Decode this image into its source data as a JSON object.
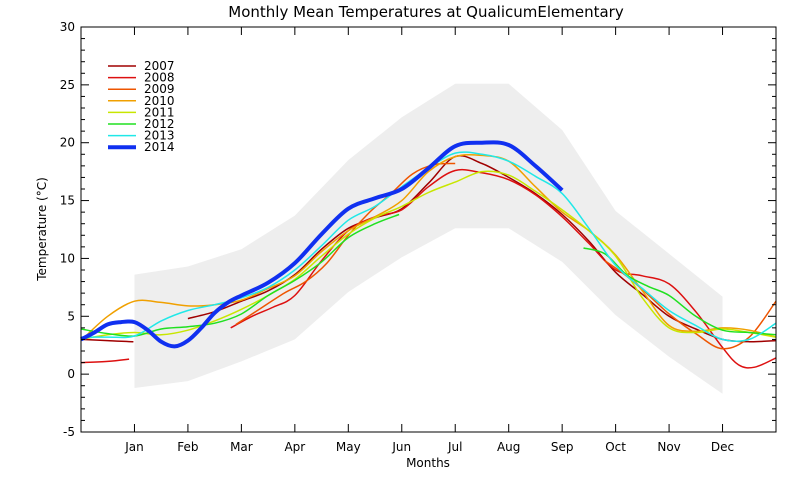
{
  "chart_data": {
    "type": "line",
    "title": "Monthly Mean Temperatures at QualicumElementary",
    "xlabel": "Months",
    "ylabel": "Temperature (°C)",
    "xlim": [
      0,
      13
    ],
    "ylim": [
      -5,
      30
    ],
    "yticks": [
      -5,
      0,
      5,
      10,
      15,
      20,
      25,
      30
    ],
    "x_tick_labels": [
      "Jan",
      "Feb",
      "Mar",
      "Apr",
      "May",
      "Jun",
      "Jul",
      "Aug",
      "Sep",
      "Oct",
      "Nov",
      "Dec"
    ],
    "x_tick_positions": [
      1,
      2,
      3,
      4,
      5,
      6,
      7,
      8,
      9,
      10,
      11,
      12
    ],
    "legend_position": "top-left",
    "range_band": {
      "color": "#eeeeee",
      "x": [
        1,
        2,
        3,
        4,
        5,
        6,
        7,
        8,
        9,
        10,
        11,
        12
      ],
      "upper": [
        8.6,
        9.3,
        10.8,
        13.7,
        18.5,
        22.2,
        25.1,
        25.1,
        21.1,
        14.1,
        10.4,
        6.7
      ],
      "lower": [
        -1.2,
        -0.6,
        1.1,
        3.0,
        7.1,
        10.1,
        12.6,
        12.6,
        9.7,
        5.1,
        1.5,
        -1.7
      ]
    },
    "series": [
      {
        "name": "2007",
        "color": "#a00000",
        "width": 1.5,
        "segments": [
          {
            "x": [
              0,
              0.5,
              0.98
            ],
            "y": [
              3.0,
              2.9,
              2.8
            ]
          },
          {
            "x": [
              2.0,
              2.5,
              3.0,
              3.5,
              4.0,
              4.5,
              5.0,
              5.5,
              6.0,
              6.5,
              7.0,
              7.5,
              8.0,
              8.5,
              9.0,
              9.5,
              10.0,
              10.5,
              11.0,
              11.5,
              12.0,
              12.5,
              13.0
            ],
            "y": [
              4.8,
              5.4,
              6.3,
              7.2,
              8.6,
              10.8,
              12.6,
              13.5,
              14.3,
              16.5,
              18.8,
              18.2,
              17.0,
              15.6,
              13.8,
              11.5,
              8.8,
              6.9,
              5.0,
              3.9,
              3.0,
              2.8,
              2.9
            ]
          }
        ]
      },
      {
        "name": "2008",
        "color": "#dd1010",
        "width": 1.5,
        "segments": [
          {
            "x": [
              0,
              0.5,
              0.9
            ],
            "y": [
              1.0,
              1.1,
              1.3
            ]
          },
          {
            "x": [
              2.8,
              3.2,
              3.6,
              4.0,
              4.5,
              5.0,
              5.5,
              6.0,
              6.5,
              7.0,
              7.5,
              8.0,
              8.5,
              9.0,
              9.5,
              10.0,
              10.5,
              11.0,
              11.5,
              12.0,
              12.3,
              12.6,
              13.0
            ],
            "y": [
              4.0,
              5.0,
              5.8,
              6.8,
              9.8,
              12.4,
              13.6,
              14.2,
              16.2,
              17.6,
              17.4,
              16.8,
              15.5,
              13.6,
              11.3,
              9.0,
              8.5,
              7.8,
              5.4,
              2.3,
              0.8,
              0.6,
              1.4
            ]
          }
        ]
      },
      {
        "name": "2009",
        "color": "#ee5500",
        "width": 1.5,
        "segments": [
          {
            "x": [
              2.9,
              3.3,
              3.8,
              4.2,
              4.6,
              5.0,
              5.4,
              5.8,
              6.2,
              6.6,
              7.0
            ],
            "y": [
              4.3,
              5.5,
              7.0,
              8.0,
              9.6,
              12.0,
              14.0,
              15.6,
              17.3,
              18.1,
              18.2
            ]
          },
          {
            "x": [
              9.8,
              10.2,
              10.6,
              11.0,
              11.5,
              12.0,
              12.5,
              13.0
            ],
            "y": [
              9.8,
              8.5,
              6.9,
              5.2,
              3.5,
              2.2,
              3.2,
              6.3
            ]
          }
        ]
      },
      {
        "name": "2010",
        "color": "#f0a000",
        "width": 1.5,
        "segments": [
          {
            "x": [
              0,
              0.5,
              1.0,
              1.5,
              2.0,
              2.5,
              3.0,
              3.5,
              4.0,
              4.5,
              5.0,
              5.5,
              6.0,
              6.5,
              7.0,
              7.5,
              8.0,
              8.5,
              9.0,
              9.5,
              10.0,
              10.5,
              11.0,
              11.5,
              12.0,
              12.5,
              13.0
            ],
            "y": [
              2.9,
              5.0,
              6.3,
              6.2,
              5.9,
              6.0,
              6.4,
              7.4,
              8.5,
              10.6,
              12.4,
              13.6,
              15.0,
              17.5,
              18.8,
              18.9,
              18.4,
              16.2,
              14.0,
              12.4,
              10.3,
              7.2,
              4.2,
              3.7,
              4.0,
              3.8,
              3.2
            ]
          }
        ]
      },
      {
        "name": "2011",
        "color": "#c8e600",
        "width": 1.5,
        "segments": [
          {
            "x": [
              0,
              0.5,
              1.0,
              1.5,
              2.0,
              2.5,
              3.0,
              3.5,
              4.0,
              4.5,
              5.0,
              5.5,
              6.0,
              6.5,
              7.0,
              7.5,
              8.0,
              8.5,
              9.0,
              9.5,
              10.0,
              10.5,
              11.0,
              11.5,
              12.0,
              12.5,
              13.0
            ],
            "y": [
              3.0,
              3.4,
              3.6,
              3.4,
              3.8,
              4.6,
              5.6,
              6.8,
              8.2,
              10.2,
              12.1,
              13.5,
              14.5,
              15.7,
              16.6,
              17.5,
              17.2,
              15.8,
              14.2,
              12.4,
              10.2,
              6.6,
              4.0,
              3.6,
              3.9,
              3.6,
              3.2
            ]
          }
        ]
      },
      {
        "name": "2012",
        "color": "#20e020",
        "width": 1.5,
        "segments": [
          {
            "x": [
              0,
              0.5,
              1.0,
              1.5,
              2.0,
              2.5,
              3.0,
              3.5,
              4.0,
              4.5,
              5.0,
              5.5,
              5.95
            ],
            "y": [
              3.9,
              3.5,
              3.3,
              3.9,
              4.1,
              4.4,
              5.2,
              6.8,
              8.1,
              9.7,
              11.8,
              13.0,
              13.8
            ]
          },
          {
            "x": [
              9.4,
              9.8,
              10.2,
              10.6,
              11.0,
              11.5,
              12.0,
              12.5,
              13.0
            ],
            "y": [
              10.9,
              10.4,
              8.6,
              7.6,
              6.8,
              5.0,
              3.8,
              3.6,
              3.4
            ]
          }
        ]
      },
      {
        "name": "2013",
        "color": "#20e8e8",
        "width": 1.5,
        "segments": [
          {
            "x": [
              0,
              0.5,
              1.0,
              1.5,
              2.0,
              2.5,
              3.0,
              3.5,
              4.0,
              4.5,
              5.0,
              5.5,
              6.0,
              6.5,
              7.0,
              7.5,
              8.0,
              8.5,
              9.0,
              9.5,
              10.0,
              10.5,
              11.0,
              11.5,
              12.0,
              12.5,
              13.0
            ],
            "y": [
              3.2,
              3.2,
              3.3,
              4.6,
              5.5,
              6.0,
              6.6,
              7.5,
              9.0,
              11.1,
              13.3,
              14.5,
              16.2,
              17.8,
              19.1,
              19.0,
              18.4,
              17.1,
              15.6,
              12.6,
              9.4,
              7.4,
              5.5,
              4.2,
              3.0,
              3.0,
              4.4
            ]
          }
        ]
      },
      {
        "name": "2014",
        "color": "#1030f0",
        "width": 4,
        "segments": [
          {
            "x": [
              0,
              0.25,
              0.5,
              0.75,
              1.0,
              1.25,
              1.5,
              1.75,
              2.0,
              2.25,
              2.5,
              2.75,
              3.0,
              3.5,
              4.0,
              4.5,
              5.0,
              5.5,
              6.0,
              6.5,
              7.0,
              7.5,
              8.0,
              8.5,
              9.0
            ],
            "y": [
              3.0,
              3.6,
              4.3,
              4.5,
              4.5,
              3.8,
              2.8,
              2.4,
              2.9,
              4.0,
              5.3,
              6.2,
              6.8,
              7.9,
              9.6,
              12.1,
              14.3,
              15.2,
              16.0,
              17.8,
              19.7,
              20.0,
              19.8,
              18.0,
              15.9
            ]
          }
        ]
      }
    ]
  }
}
